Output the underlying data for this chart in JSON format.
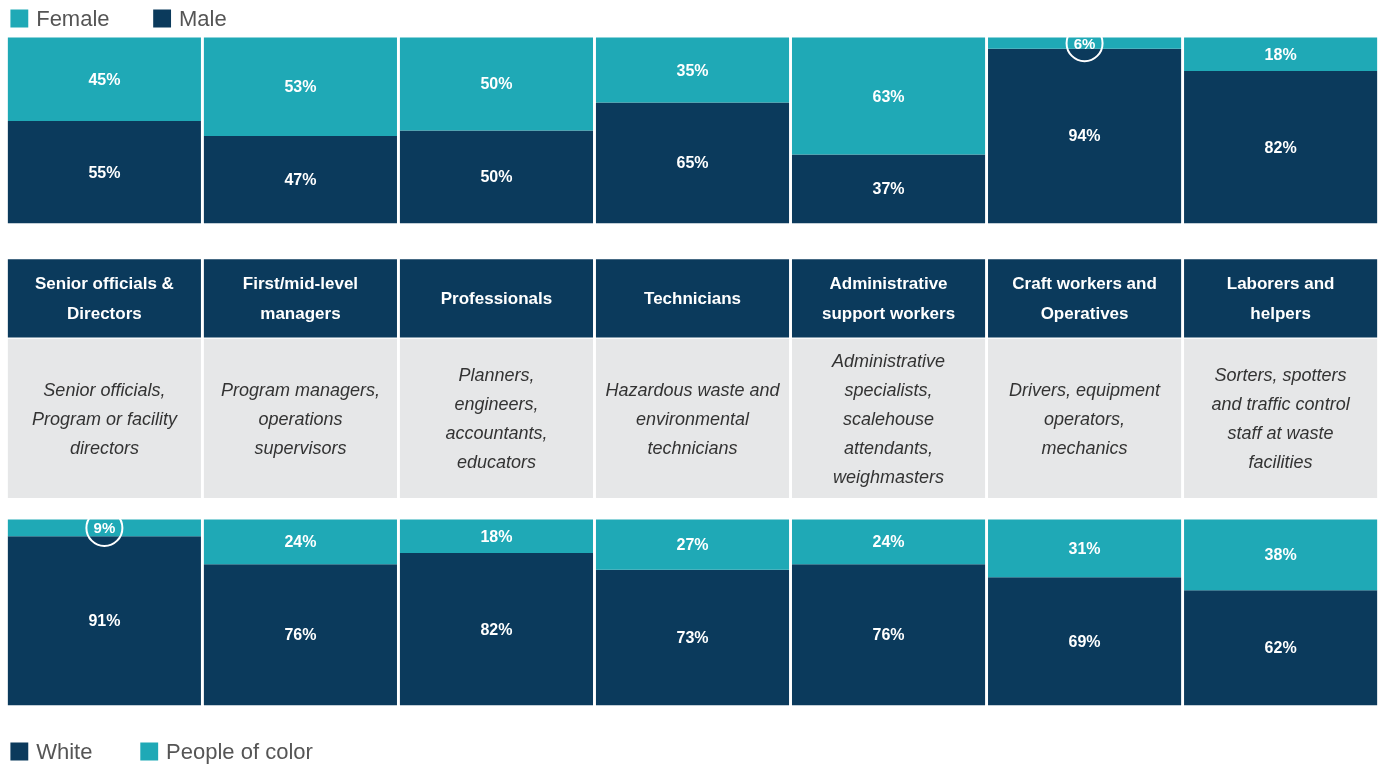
{
  "chart_data": [
    {
      "type": "bar",
      "stacked": true,
      "categories": [
        "Senior officials & Directors",
        "First/mid-level managers",
        "Professionals",
        "Technicians",
        "Administrative support workers",
        "Craft workers and Operatives",
        "Laborers and helpers"
      ],
      "series": [
        {
          "name": "Male",
          "color": "#0b3a5c",
          "values": [
            55,
            47,
            50,
            65,
            37,
            94,
            82
          ],
          "value_labels": [
            "55%",
            "47%",
            "50%",
            "65%",
            "37%",
            "94%",
            "82%"
          ]
        },
        {
          "name": "Female",
          "color": "#1fa9b6",
          "values": [
            45,
            53,
            50,
            35,
            63,
            6,
            18
          ],
          "value_labels": [
            "45%",
            "53%",
            "50%",
            "35%",
            "63%",
            "6%",
            "18%"
          ]
        }
      ],
      "legend": "top left",
      "tick_labels": "x",
      "grid": false
    },
    {
      "type": "other",
      "annotations": [
        "Senior officials, Program or facility directors",
        "Program managers, operations supervisors",
        "Planners, engineers, accountants, educators",
        "Hazardous waste and environmental technicians",
        "Administrative specialists, scalehouse attendants, weighmasters",
        "Drivers, equipment operators, mechanics",
        "Sorters, spotters and traffic control staff at waste facilities"
      ]
    },
    {
      "type": "bar",
      "stacked": true,
      "categories": [
        null,
        null,
        null,
        null,
        null,
        null,
        null
      ],
      "series": [
        {
          "name": "White",
          "color": "#0b3a5c",
          "values": [
            91,
            76,
            82,
            73,
            76,
            69,
            62
          ],
          "value_labels": [
            "91%",
            "76%",
            "82%",
            "73%",
            "76%",
            "69%",
            "62%"
          ]
        },
        {
          "name": "People of color",
          "color": "#1fa9b6",
          "values": [
            9,
            24,
            18,
            27,
            24,
            31,
            38
          ],
          "value_labels": [
            "9%",
            "24%",
            "18%",
            "27%",
            "24%",
            "31%",
            "38%"
          ]
        }
      ],
      "legend": "bottom left",
      "tick_labels": false,
      "grid": false
    }
  ]
}
